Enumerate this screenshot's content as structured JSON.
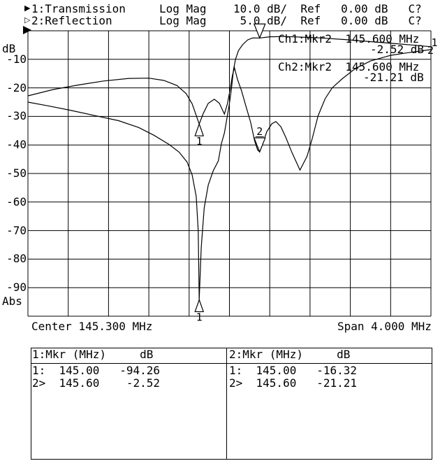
{
  "header": {
    "ch1": {
      "arrow": "▶",
      "line": "1:Transmission     Log Mag    10.0 dB/  Ref   0.00 dB   C?"
    },
    "ch2": {
      "arrow": "▷",
      "line": "2:Reflection       Log Mag     5.0 dB/  Ref   0.00 dB   C?"
    }
  },
  "plot_labels": {
    "y_unit": "dB",
    "y_bottom": "Abs"
  },
  "annotations": {
    "ch1_line1": "Ch1:Mkr2  145.600 MHz",
    "ch1_line2": "-2.52 dB",
    "ch2_line1": "Ch2:Mkr2  145.600 MHz",
    "ch2_line2": "-21.21 dB"
  },
  "marker_table": {
    "left": {
      "header": "1:Mkr (MHz)     dB",
      "rows": [
        "1:  145.00   -94.26",
        "2>  145.60    -2.52"
      ]
    },
    "right": {
      "header": "2:Mkr (MHz)     dB",
      "rows": [
        "1:  145.00   -16.32",
        "2>  145.60   -21.21"
      ]
    }
  },
  "chart_data": {
    "type": "line",
    "title": "",
    "x_axis": {
      "center_label": "Center 145.300 MHz",
      "span_label": "Span 4.000 MHz",
      "center_mhz": 145.3,
      "span_mhz": 4.0,
      "start_mhz": 143.3,
      "stop_mhz": 147.3,
      "divisions": 10,
      "grid": true
    },
    "y_axis": {
      "unit": "dB",
      "tick_labels": [
        "-10",
        "-20",
        "-30",
        "-40",
        "-50",
        "-60",
        "-70",
        "-80",
        "-90"
      ],
      "ref_db": 0.0,
      "divisions": 10,
      "ch1_db_per_div": 10.0,
      "ch2_db_per_div": 5.0
    },
    "series": [
      {
        "name": "Transmission",
        "channel": 1,
        "db_per_div": 10.0,
        "exit_label": "1",
        "points": [
          [
            143.3,
            -25.0
          ],
          [
            143.5,
            -26.3
          ],
          [
            143.7,
            -27.7
          ],
          [
            143.95,
            -29.6
          ],
          [
            144.2,
            -31.5
          ],
          [
            144.4,
            -33.9
          ],
          [
            144.55,
            -36.6
          ],
          [
            144.7,
            -39.8
          ],
          [
            144.8,
            -42.5
          ],
          [
            144.88,
            -46.0
          ],
          [
            144.93,
            -50.5
          ],
          [
            144.97,
            -58.0
          ],
          [
            144.99,
            -70.0
          ],
          [
            145.0,
            -94.26
          ],
          [
            145.02,
            -76.0
          ],
          [
            145.05,
            -62.0
          ],
          [
            145.09,
            -54.0
          ],
          [
            145.14,
            -49.0
          ],
          [
            145.19,
            -45.6
          ],
          [
            145.22,
            -39.5
          ],
          [
            145.25,
            -35.8
          ],
          [
            145.28,
            -29.7
          ],
          [
            145.3,
            -25.5
          ],
          [
            145.32,
            -20.3
          ],
          [
            145.34,
            -13.7
          ],
          [
            145.36,
            -10.0
          ],
          [
            145.39,
            -6.9
          ],
          [
            145.43,
            -4.9
          ],
          [
            145.48,
            -3.2
          ],
          [
            145.53,
            -2.5
          ],
          [
            145.6,
            -2.52
          ],
          [
            145.7,
            -2.1
          ],
          [
            145.85,
            -2.0
          ],
          [
            146.0,
            -2.2
          ],
          [
            146.2,
            -2.5
          ],
          [
            146.45,
            -3.1
          ],
          [
            146.7,
            -3.8
          ],
          [
            146.95,
            -4.5
          ],
          [
            147.15,
            -5.1
          ],
          [
            147.3,
            -5.6
          ]
        ]
      },
      {
        "name": "Reflection",
        "channel": 2,
        "db_per_div": 5.0,
        "exit_label": "2",
        "points": [
          [
            143.3,
            -11.4
          ],
          [
            143.55,
            -10.3
          ],
          [
            143.8,
            -9.5
          ],
          [
            144.05,
            -8.8
          ],
          [
            144.3,
            -8.35
          ],
          [
            144.5,
            -8.3
          ],
          [
            144.65,
            -8.7
          ],
          [
            144.78,
            -9.6
          ],
          [
            144.87,
            -11.0
          ],
          [
            144.93,
            -12.8
          ],
          [
            144.97,
            -14.8
          ],
          [
            145.0,
            -16.32
          ],
          [
            145.04,
            -14.5
          ],
          [
            145.09,
            -12.7
          ],
          [
            145.15,
            -12.0
          ],
          [
            145.2,
            -12.7
          ],
          [
            145.25,
            -14.6
          ],
          [
            145.28,
            -12.8
          ],
          [
            145.31,
            -10.0
          ],
          [
            145.33,
            -7.8
          ],
          [
            145.35,
            -6.5
          ],
          [
            145.38,
            -8.5
          ],
          [
            145.42,
            -10.5
          ],
          [
            145.46,
            -13.0
          ],
          [
            145.51,
            -16.0
          ],
          [
            145.55,
            -19.3
          ],
          [
            145.58,
            -20.9
          ],
          [
            145.6,
            -21.21
          ],
          [
            145.63,
            -19.8
          ],
          [
            145.67,
            -17.7
          ],
          [
            145.72,
            -16.3
          ],
          [
            145.76,
            -15.9
          ],
          [
            145.81,
            -16.8
          ],
          [
            145.86,
            -18.7
          ],
          [
            145.92,
            -21.3
          ],
          [
            146.0,
            -24.4
          ],
          [
            146.07,
            -22.0
          ],
          [
            146.12,
            -19.0
          ],
          [
            146.18,
            -14.9
          ],
          [
            146.25,
            -11.9
          ],
          [
            146.32,
            -10.0
          ],
          [
            146.42,
            -8.4
          ],
          [
            146.55,
            -6.6
          ],
          [
            146.7,
            -5.3
          ],
          [
            146.9,
            -4.3
          ],
          [
            147.05,
            -3.9
          ],
          [
            147.3,
            -3.3
          ]
        ]
      }
    ],
    "markers": [
      {
        "channel": 1,
        "number": "1",
        "mhz": 145.0,
        "db": -94.26,
        "style": "up",
        "label": "below"
      },
      {
        "channel": 1,
        "number": "2",
        "mhz": 145.6,
        "db": -2.52,
        "style": "down",
        "label": "none"
      },
      {
        "channel": 2,
        "number": "1",
        "mhz": 145.0,
        "db": -16.32,
        "style": "up",
        "label": "below"
      },
      {
        "channel": 2,
        "number": "2",
        "mhz": 145.6,
        "db": -21.21,
        "style": "down",
        "label": "above-underline"
      }
    ]
  }
}
